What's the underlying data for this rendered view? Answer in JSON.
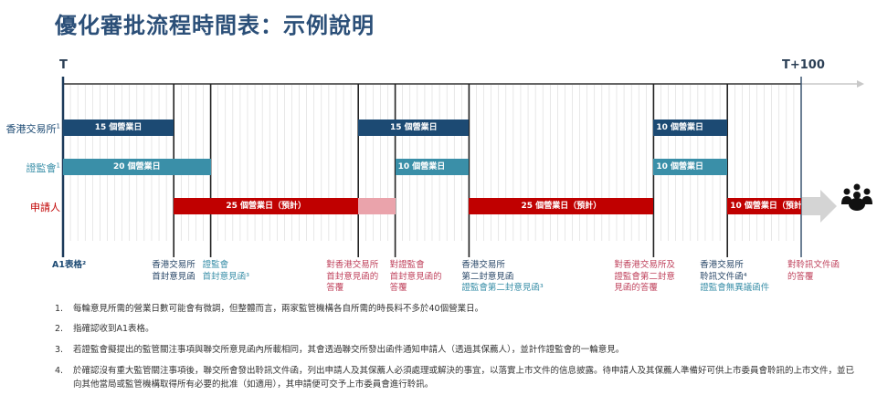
{
  "title": "優化審批流程時間表：示例說明",
  "axis": {
    "start_label": "T",
    "end_label": "T+100",
    "total_days": 100
  },
  "colors": {
    "hkex": "#1c4a73",
    "sfc": "#3a8fa8",
    "applicant": "#c00000",
    "applicant_pending": "#eaa3ab",
    "milestone_hkex": "#2c4a6a",
    "milestone_sfc": "#3a8fa8",
    "milestone_applicant": "#c0445e"
  },
  "rows": [
    {
      "label": "香港交易所",
      "note": "1",
      "color_key": "hkex",
      "bars": [
        {
          "start": 0,
          "end": 15,
          "text": "15 個營業日"
        },
        {
          "start": 40,
          "end": 55,
          "text": "15 個營業日"
        },
        {
          "start": 80,
          "end": 90,
          "text": "10 個營業日"
        }
      ]
    },
    {
      "label": "證監會",
      "note": "1",
      "color_key": "sfc",
      "bars": [
        {
          "start": 0,
          "end": 20,
          "text": "20 個營業日"
        },
        {
          "start": 45,
          "end": 55,
          "text": "10 個營業日"
        },
        {
          "start": 80,
          "end": 90,
          "text": "10 個營業日"
        }
      ]
    },
    {
      "label": "申請人",
      "note": "",
      "color_key": "applicant",
      "bars": [
        {
          "start": 15,
          "end": 40,
          "text": "25 個營業日（預計）"
        },
        {
          "start": 40,
          "end": 45,
          "text": "",
          "pending": true
        },
        {
          "start": 55,
          "end": 80,
          "text": "25 個營業日（預計）"
        },
        {
          "start": 90,
          "end": 100,
          "text": "10 個營業日（預計）"
        }
      ]
    }
  ],
  "milestones": [
    {
      "day": 0,
      "lines": [
        {
          "text": "A1表格²",
          "color_key": "hkex",
          "bold": true
        }
      ]
    },
    {
      "day": 15,
      "lines": [
        {
          "text": "香港交易所",
          "color_key": "milestone_hkex"
        },
        {
          "text": "首封意見函",
          "color_key": "milestone_hkex"
        }
      ]
    },
    {
      "day": 20,
      "lines": [
        {
          "text": "證監會",
          "color_key": "milestone_sfc"
        },
        {
          "text": "首封意見函³",
          "color_key": "milestone_sfc"
        }
      ]
    },
    {
      "day": 40,
      "lines": [
        {
          "text": "對香港交易所",
          "color_key": "milestone_applicant"
        },
        {
          "text": "首封意見函的",
          "color_key": "milestone_applicant"
        },
        {
          "text": "答覆",
          "color_key": "milestone_applicant"
        }
      ]
    },
    {
      "day": 45,
      "lines": [
        {
          "text": "對證監會",
          "color_key": "milestone_applicant"
        },
        {
          "text": "首封意見函的",
          "color_key": "milestone_applicant"
        },
        {
          "text": "答覆",
          "color_key": "milestone_applicant"
        }
      ]
    },
    {
      "day": 55,
      "lines": [
        {
          "text": "香港交易所",
          "color_key": "milestone_hkex"
        },
        {
          "text": "第二封意見函",
          "color_key": "milestone_hkex"
        },
        {
          "text": "證監會第二封意見函³",
          "color_key": "milestone_sfc"
        }
      ]
    },
    {
      "day": 80,
      "lines": [
        {
          "text": "對香港交易所及",
          "color_key": "milestone_applicant"
        },
        {
          "text": "證監會第二封意",
          "color_key": "milestone_applicant"
        },
        {
          "text": "見函的答覆",
          "color_key": "milestone_applicant"
        }
      ]
    },
    {
      "day": 90,
      "lines": [
        {
          "text": "香港交易所",
          "color_key": "milestone_hkex"
        },
        {
          "text": "聆訊文件函⁴",
          "color_key": "milestone_hkex"
        },
        {
          "text": "證監會無異議函件",
          "color_key": "milestone_sfc"
        }
      ]
    },
    {
      "day": 100,
      "lines": [
        {
          "text": "對聆訊文件函",
          "color_key": "milestone_applicant"
        },
        {
          "text": "的答覆",
          "color_key": "milestone_applicant"
        }
      ]
    }
  ],
  "end_icon": "people-group-icon",
  "notes": [
    {
      "num": "1.",
      "text": "每輪意見所需的營業日數可能會有微調，但整體而言，兩家監管機構各自所需的時長料不多於40個營業日。"
    },
    {
      "num": "2.",
      "text": "指確認收到A1表格。"
    },
    {
      "num": "3.",
      "text": "若證監會擬提出的監管關注事項與聯交所意見函內所載相同，其會透過聯交所發出函件通知申請人（透過其保薦人），並計作證監會的一輪意見。"
    },
    {
      "num": "4.",
      "text": "於確認沒有重大監管關注事項後，聯交所會發出聆訊文件函，列出申請人及其保薦人必須處理或解決的事宜，以落實上市文件的信息披露。待申請人及其保薦人準備好可供上市委員會聆訊的上市文件，並已向其他當局或監管機構取得所有必要的批准（如適用），其申請便可交予上市委員會進行聆訊。"
    }
  ]
}
